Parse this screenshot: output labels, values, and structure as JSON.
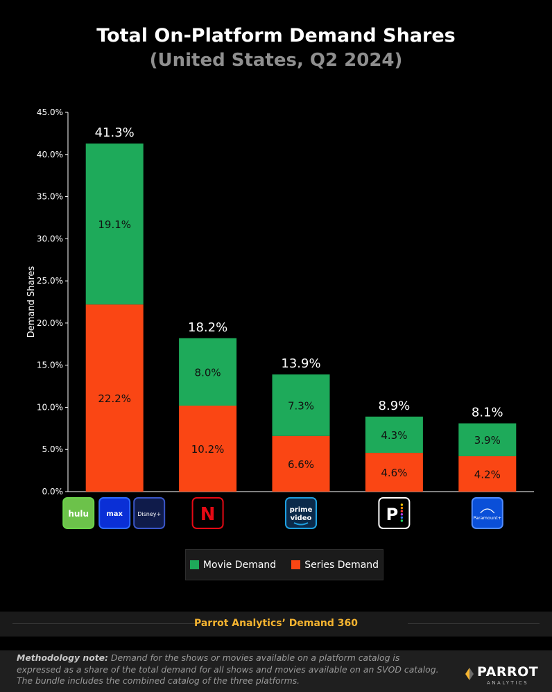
{
  "header": {
    "title": "Total On-Platform Demand Shares",
    "subtitle": "(United States, Q2 2024)"
  },
  "colors": {
    "movie": "#1eaa5a",
    "series": "#fa4614",
    "background": "#000000",
    "source": "#f5b430"
  },
  "chart_data": {
    "type": "bar",
    "stacked": true,
    "categories": [
      "Hulu + Max + Disney+ bundle",
      "Netflix",
      "Prime Video",
      "Peacock",
      "Paramount+"
    ],
    "category_icons": [
      [
        "hulu-logo",
        "max-logo",
        "disney-plus-logo"
      ],
      [
        "netflix-logo"
      ],
      [
        "prime-video-logo"
      ],
      [
        "peacock-logo"
      ],
      [
        "paramount-plus-logo"
      ]
    ],
    "series": [
      {
        "name": "Series Demand",
        "values": [
          22.2,
          10.2,
          6.6,
          4.6,
          4.2
        ],
        "labels": [
          "22.2%",
          "10.2%",
          "6.6%",
          "4.6%",
          "4.2%"
        ]
      },
      {
        "name": "Movie Demand",
        "values": [
          19.1,
          8.0,
          7.3,
          4.3,
          3.9
        ],
        "labels": [
          "19.1%",
          "8.0%",
          "7.3%",
          "4.3%",
          "3.9%"
        ]
      }
    ],
    "totals": [
      41.3,
      18.2,
      13.9,
      8.9,
      8.1
    ],
    "total_labels": [
      "41.3%",
      "18.2%",
      "13.9%",
      "8.9%",
      "8.1%"
    ],
    "ylabel": "Demand Shares",
    "ylim": [
      0,
      45
    ],
    "yticks": [
      0,
      5,
      10,
      15,
      20,
      25,
      30,
      35,
      40,
      45
    ],
    "ytick_labels": [
      "0.0%",
      "5.0%",
      "10.0%",
      "15.0%",
      "20.0%",
      "25.0%",
      "30.0%",
      "35.0%",
      "40.0%",
      "45.0%"
    ],
    "grid": false,
    "legend_position": "bottom-center"
  },
  "legend": {
    "movie_label": "Movie Demand",
    "series_label": "Series Demand"
  },
  "logos": {
    "hulu": "hulu",
    "max": "max",
    "disney": "Disney+",
    "prime_top": "prime",
    "prime_bottom": "video",
    "paramount": "Paramount+"
  },
  "source": "Parrot Analytics’ Demand 360",
  "footer": {
    "note_label": "Methodology note:",
    "note_text": " Demand for the shows or movies available on a platform catalog is expressed as a share of the total demand for all shows and movies available on an SVOD catalog. The bundle includes the combined catalog of the three platforms.",
    "brand_name": "PARROT",
    "brand_sub": "ANALYTICS"
  }
}
